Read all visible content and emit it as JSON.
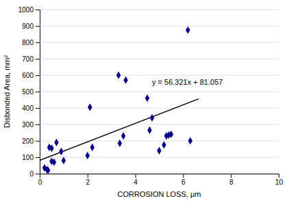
{
  "chart_data": {
    "type": "scatter",
    "xlabel": "CORROSION LOSS, μm",
    "ylabel": "Disbonded Area, mm²",
    "xlim": [
      0,
      10
    ],
    "ylim": [
      0,
      1000
    ],
    "xticks": [
      0,
      2,
      4,
      6,
      8,
      10
    ],
    "yticks": [
      0,
      100,
      200,
      300,
      400,
      500,
      600,
      700,
      800,
      900,
      1000
    ],
    "grid": "y",
    "series": [
      {
        "type": "scatter",
        "color": "#00008B",
        "marker": "diamond",
        "x": [
          0.2,
          0.3,
          0.35,
          0.4,
          0.5,
          0.5,
          0.6,
          0.7,
          0.9,
          1.0,
          2.0,
          2.1,
          2.2,
          3.3,
          3.35,
          3.5,
          3.6,
          4.5,
          4.6,
          4.7,
          5.0,
          5.2,
          5.3,
          5.4,
          5.5,
          6.2,
          6.3
        ],
        "values": [
          35,
          25,
          20,
          160,
          155,
          75,
          70,
          190,
          135,
          80,
          110,
          405,
          160,
          600,
          185,
          230,
          570,
          460,
          265,
          340,
          140,
          175,
          230,
          235,
          240,
          875,
          200
        ]
      },
      {
        "type": "line",
        "color": "#000000",
        "x": [
          0.0,
          6.65
        ],
        "values": [
          81.057,
          455.59165
        ]
      }
    ],
    "annotations": [
      {
        "text": "y = 56.321x + 81.057",
        "x": 4.7,
        "y": 540
      }
    ]
  }
}
